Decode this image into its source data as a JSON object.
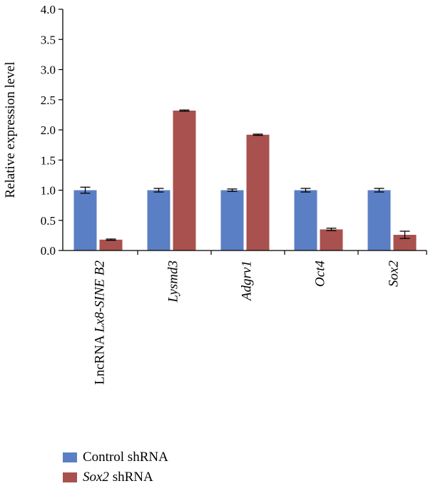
{
  "chart_data": {
    "type": "bar",
    "ylabel": "Relative expression level",
    "ylim": [
      0,
      4.0
    ],
    "yticks": [
      "0.0",
      "0.5",
      "1.0",
      "1.5",
      "2.0",
      "2.5",
      "3.0",
      "3.5",
      "4.0"
    ],
    "categories": [
      {
        "plain": "LncRNA ",
        "italic": "Lx8-SINE B2"
      },
      {
        "plain": "",
        "italic": "Lysmd3"
      },
      {
        "plain": "",
        "italic": "Adgrv1"
      },
      {
        "plain": "",
        "italic": "Oct4"
      },
      {
        "plain": "",
        "italic": "Sox2"
      }
    ],
    "series": [
      {
        "name": "Control shRNA",
        "color": "#5b7fc4",
        "values": [
          1.0,
          1.0,
          1.0,
          1.0,
          1.0
        ],
        "errors": [
          0.05,
          0.03,
          0.02,
          0.03,
          0.03
        ]
      },
      {
        "name": "Sox2 shRNA",
        "color": "#a8514e",
        "values": [
          0.18,
          2.32,
          1.92,
          0.35,
          0.26
        ],
        "errors": [
          0.01,
          0.01,
          0.01,
          0.02,
          0.06
        ]
      }
    ],
    "legend": {
      "position": "bottom-left",
      "entries": [
        {
          "plain_before": "Control shRNA",
          "italic": "",
          "plain_after": ""
        },
        {
          "plain_before": "",
          "italic": "Sox2",
          "plain_after": " shRNA"
        }
      ]
    }
  }
}
